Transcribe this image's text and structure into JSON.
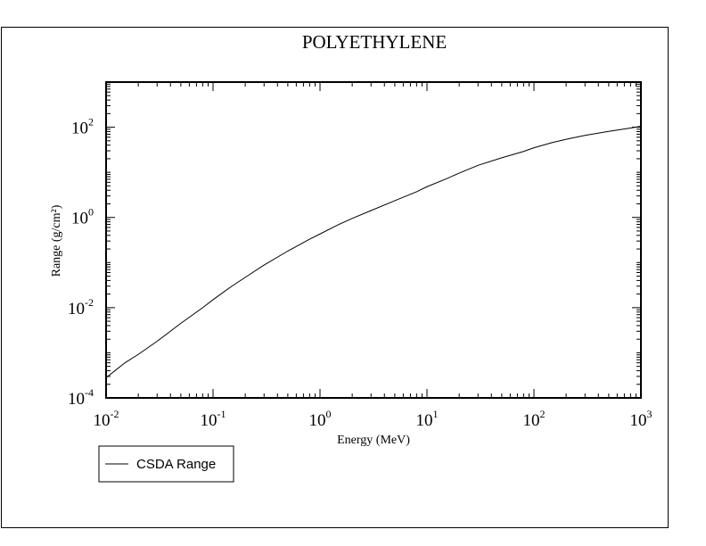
{
  "chart_data": {
    "type": "line",
    "title": "POLYETHYLENE",
    "xlabel": "Energy (MeV)",
    "ylabel": "Range (g/cm²)",
    "xscale": "log",
    "yscale": "log",
    "xlim": [
      0.01,
      1000
    ],
    "ylim": [
      0.0001,
      1000
    ],
    "x_ticks": [
      {
        "base": "10",
        "exp": "-2",
        "value": 0.01
      },
      {
        "base": "10",
        "exp": "-1",
        "value": 0.1
      },
      {
        "base": "10",
        "exp": "0",
        "value": 1
      },
      {
        "base": "10",
        "exp": "1",
        "value": 10
      },
      {
        "base": "10",
        "exp": "2",
        "value": 100
      },
      {
        "base": "10",
        "exp": "3",
        "value": 1000
      }
    ],
    "y_ticks": [
      {
        "base": "10",
        "exp": "-4",
        "value": 0.0001
      },
      {
        "base": "10",
        "exp": "-2",
        "value": 0.01
      },
      {
        "base": "10",
        "exp": "0",
        "value": 1
      },
      {
        "base": "10",
        "exp": "2",
        "value": 100
      }
    ],
    "grid": false,
    "legend_position": "bottom-left",
    "series": [
      {
        "name": "CSDA Range",
        "color": "#000000",
        "x": [
          0.01,
          0.015,
          0.02,
          0.03,
          0.05,
          0.08,
          0.1,
          0.15,
          0.2,
          0.3,
          0.5,
          0.8,
          1,
          1.5,
          2,
          3,
          5,
          8,
          10,
          15,
          20,
          30,
          50,
          80,
          100,
          150,
          200,
          300,
          500,
          800,
          1000
        ],
        "y": [
          0.00028,
          0.0006,
          0.00092,
          0.0018,
          0.0045,
          0.01,
          0.015,
          0.03,
          0.047,
          0.088,
          0.18,
          0.33,
          0.43,
          0.7,
          0.95,
          1.42,
          2.35,
          3.7,
          4.8,
          7.1,
          9.6,
          14.3,
          21,
          29,
          35,
          46,
          54,
          66,
          81,
          96,
          105
        ]
      }
    ]
  }
}
